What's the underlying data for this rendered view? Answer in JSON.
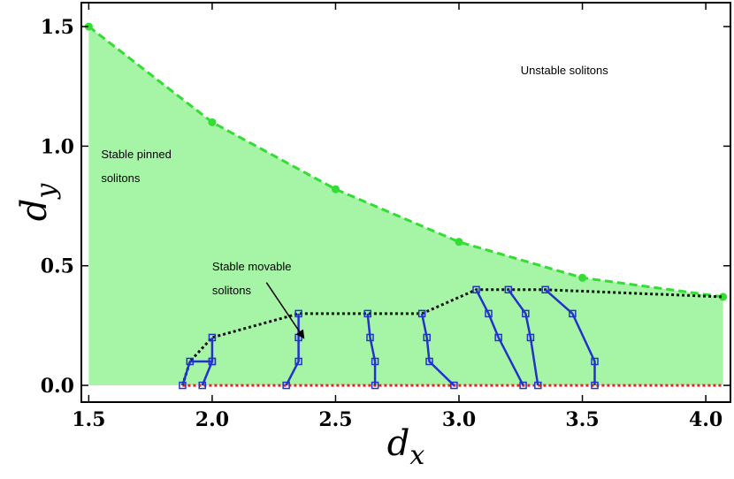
{
  "chart_data": {
    "type": "line",
    "title": "",
    "xlabel": {
      "base": "d",
      "sub": "x"
    },
    "ylabel": {
      "base": "d",
      "sub": "y"
    },
    "xlim": [
      1.47,
      4.1
    ],
    "ylim": [
      -0.07,
      1.6
    ],
    "x_ticks": [
      1.5,
      2.0,
      2.5,
      3.0,
      3.5,
      4.0
    ],
    "x_tick_labels": [
      "1.5",
      "2.0",
      "2.5",
      "3.0",
      "3.5",
      "4.0"
    ],
    "y_ticks": [
      0.0,
      0.5,
      1.0,
      1.5
    ],
    "y_tick_labels": [
      "0.0",
      "0.5",
      "1.0",
      "1.5"
    ],
    "grid": false,
    "colors": {
      "stable_region": "#a6f5a6",
      "upper_boundary": "#33dd33",
      "movable_boundary": "#111111",
      "trajectories": "#2233cc",
      "baseline": "#ee2222"
    },
    "upper_boundary": {
      "x": [
        1.5,
        2.0,
        2.5,
        3.0,
        3.5,
        4.07
      ],
      "y": [
        1.5,
        1.1,
        0.82,
        0.6,
        0.45,
        0.37
      ]
    },
    "movable_boundary": {
      "x": [
        1.88,
        1.91,
        2.0,
        2.35,
        2.63,
        2.85,
        3.07,
        3.2,
        3.35,
        4.07
      ],
      "y": [
        0.0,
        0.1,
        0.2,
        0.3,
        0.3,
        0.3,
        0.4,
        0.4,
        0.4,
        0.37
      ]
    },
    "trajectories": [
      {
        "x": [
          2.0,
          2.0,
          1.91,
          1.88
        ],
        "y": [
          0.2,
          0.1,
          0.1,
          0.0
        ]
      },
      {
        "x": [
          2.0,
          1.96
        ],
        "y": [
          0.1,
          0.0
        ]
      },
      {
        "x": [
          2.35,
          2.35,
          2.35,
          2.3
        ],
        "y": [
          0.3,
          0.2,
          0.1,
          0.0
        ]
      },
      {
        "x": [
          2.63,
          2.64,
          2.66,
          2.66
        ],
        "y": [
          0.3,
          0.2,
          0.1,
          0.0
        ]
      },
      {
        "x": [
          2.85,
          2.87,
          2.88,
          2.98
        ],
        "y": [
          0.3,
          0.2,
          0.1,
          0.0
        ]
      },
      {
        "x": [
          3.07,
          3.12,
          3.16,
          3.26
        ],
        "y": [
          0.4,
          0.3,
          0.2,
          0.0
        ]
      },
      {
        "x": [
          3.2,
          3.27,
          3.29,
          3.32
        ],
        "y": [
          0.4,
          0.3,
          0.2,
          0.0
        ]
      },
      {
        "x": [
          3.35,
          3.46,
          3.55,
          3.55
        ],
        "y": [
          0.4,
          0.3,
          0.1,
          0.0
        ]
      }
    ],
    "baseline": {
      "x": [
        1.88,
        4.07
      ],
      "y": [
        0.0,
        0.0
      ]
    },
    "annotations": [
      {
        "text": "Unstable solitons",
        "x": 3.25,
        "y": 1.3
      },
      {
        "text": "Stable pinned",
        "x": 1.55,
        "y": 0.95
      },
      {
        "text": "solitons",
        "x": 1.55,
        "y": 0.85
      },
      {
        "text": "Stable movable",
        "x": 2.0,
        "y": 0.48
      },
      {
        "text": "solitons",
        "x": 2.0,
        "y": 0.38
      }
    ],
    "arrow": {
      "from": [
        2.22,
        0.43
      ],
      "to": [
        2.37,
        0.2
      ]
    }
  }
}
